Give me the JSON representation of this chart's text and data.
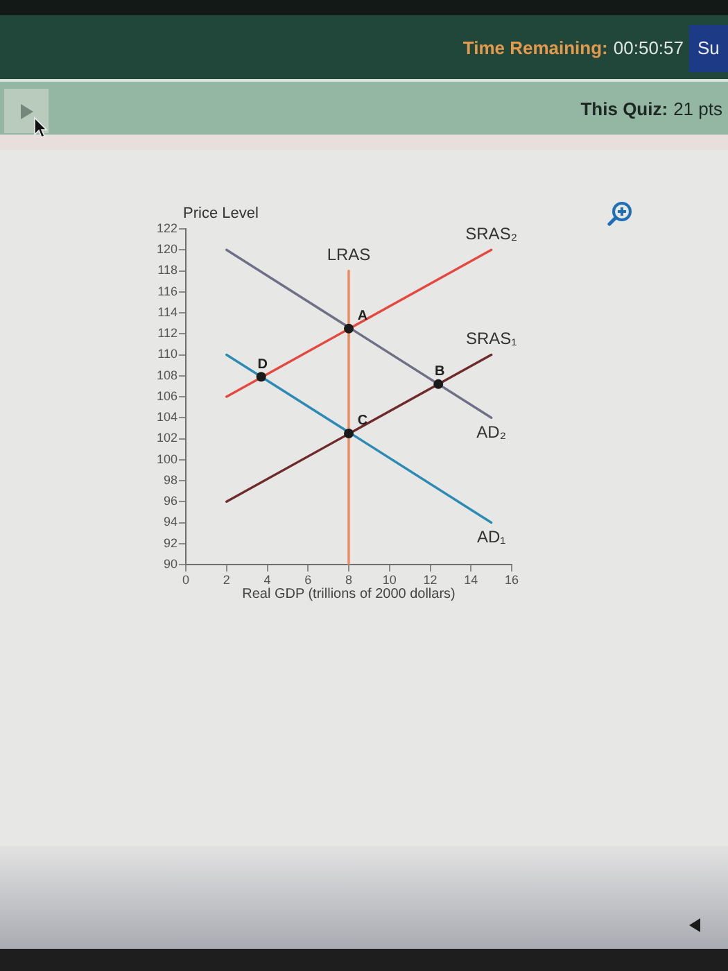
{
  "chart_data": {
    "type": "line",
    "xlabel": "Real GDP (trillions of 2000 dollars)",
    "ylabel": "Price Level",
    "xlim": [
      0,
      16
    ],
    "xticks": [
      0,
      2,
      4,
      6,
      8,
      10,
      12,
      14,
      16
    ],
    "ylim": [
      90,
      122
    ],
    "yticks": [
      90,
      92,
      94,
      96,
      98,
      100,
      102,
      104,
      106,
      108,
      110,
      112,
      114,
      116,
      118,
      120,
      122
    ],
    "series": [
      {
        "name": "SRAS₂",
        "color": "#e4483f",
        "x": [
          2,
          15
        ],
        "values": [
          106,
          120
        ]
      },
      {
        "name": "LRAS",
        "color": "#f0875a",
        "x": [
          8,
          8
        ],
        "values": [
          90,
          118
        ]
      },
      {
        "name": "SRAS₁",
        "color": "#6e2b2b",
        "x": [
          2,
          15
        ],
        "values": [
          96,
          110
        ]
      },
      {
        "name": "AD₂",
        "color": "#6f6f86",
        "x": [
          2,
          15
        ],
        "values": [
          120,
          104
        ]
      },
      {
        "name": "AD₁",
        "color": "#2b8bb5",
        "x": [
          2,
          15
        ],
        "values": [
          110,
          94
        ]
      },
      {
        "type": "scatter",
        "color": "#1a1a1a",
        "marker": "circle",
        "x": [
          8,
          12.4,
          8,
          3.7
        ],
        "values": [
          112.5,
          107.2,
          102.5,
          107.9
        ]
      }
    ],
    "annotations": [
      {
        "text": "A",
        "x": 8,
        "y": 112.5
      },
      {
        "text": "B",
        "x": 12.4,
        "y": 107.2
      },
      {
        "text": "C",
        "x": 8,
        "y": 102.5
      },
      {
        "text": "D",
        "x": 3.7,
        "y": 107.9
      },
      "Time Remaining:",
      "00:50:57",
      "Su",
      "This Quiz:",
      "21 pts"
    ]
  }
}
